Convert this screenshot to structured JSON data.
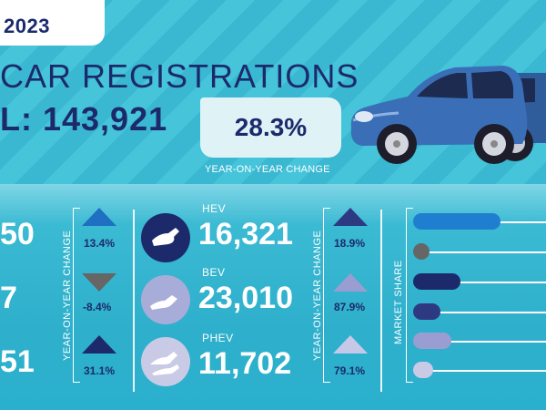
{
  "header": {
    "year": "2023",
    "title": "CAR REGISTRATIONS",
    "total_text": "L: 143,921",
    "yoy_value": "28.3%",
    "yoy_caption": "YEAR-ON-YEAR CHANGE"
  },
  "left_numbers": [
    "50",
    "7",
    "51"
  ],
  "left_changes": [
    {
      "value": "13.4%",
      "direction": "up",
      "color": "#1f6fc2"
    },
    {
      "value": "-8.4%",
      "direction": "down",
      "color": "#666666"
    },
    {
      "value": "31.1%",
      "direction": "up",
      "color": "#1c2a6b"
    }
  ],
  "yoy_label": "YEAR-ON-YEAR CHANGE",
  "fuels": [
    {
      "name": "HEV",
      "value": "16,321",
      "icon": "fuel-pump-icon",
      "icon_color": "#1c2a6b"
    },
    {
      "name": "BEV",
      "value": "23,010",
      "icon": "ev-charger-icon",
      "icon_color": "#a8acd8"
    },
    {
      "name": "PHEV",
      "value": "11,702",
      "icon": "plug-in-hybrid-icon",
      "icon_color": "#c9cae6"
    }
  ],
  "fuel_changes": [
    {
      "value": "18.9%",
      "direction": "up",
      "color": "#2d3a82"
    },
    {
      "value": "87.9%",
      "direction": "up",
      "color": "#9a9dd2"
    },
    {
      "value": "79.1%",
      "direction": "up",
      "color": "#c6c8e8"
    }
  ],
  "market_share_label": "MARKET SHARE",
  "market_share_colors": [
    "#1f7ed0",
    "#666666",
    "#1c2a6b",
    "#2d3a82",
    "#9a9dd2",
    "#c9cae6"
  ]
}
